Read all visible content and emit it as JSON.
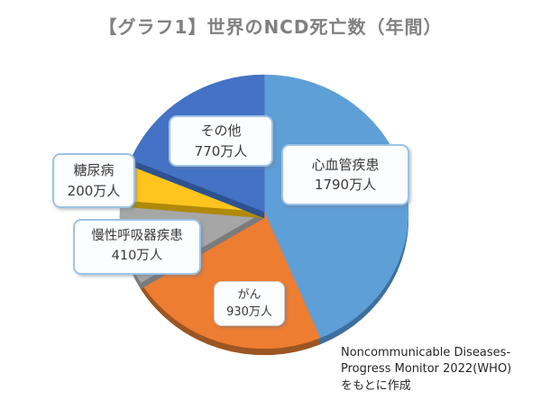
{
  "title": "【グラフ1】世界のNCD死亡数（年間）",
  "source": {
    "line1": "Noncommunicable Diseases-",
    "line2": "Progress Monitor 2022(WHO)",
    "line3": "をもとに作成"
  },
  "chart_data": {
    "type": "pie",
    "title": "【グラフ1】世界のNCD死亡数（年間）",
    "unit": "万人",
    "total_value": 4100,
    "start_angle_deg": 0,
    "direction": "clockwise",
    "style": "3d-depth",
    "slices": [
      {
        "label": "心血管疾患",
        "value": 1790,
        "amount": "1790万人",
        "color": "#5F9FD8",
        "depth_color": "#3D6F9E"
      },
      {
        "label": "がん",
        "value": 930,
        "amount": "930万人",
        "color": "#ED7D31",
        "depth_color": "#9B5522"
      },
      {
        "label": "慢性呼吸器疾患",
        "value": 410,
        "amount": "410万人",
        "color": "#A6A6A6",
        "depth_color": "#7B7B7B"
      },
      {
        "label": "糖尿病",
        "value": 200,
        "amount": "200万人",
        "color": "#FFC41E",
        "depth_color": "#B08908"
      },
      {
        "label": "その他",
        "value": 770,
        "amount": "770万人",
        "color": "#4472C4",
        "depth_color": "#2E5291"
      }
    ]
  }
}
